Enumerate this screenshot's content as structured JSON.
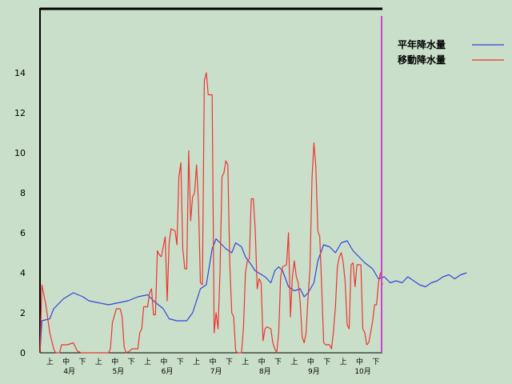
{
  "chart_data": {
    "type": "line",
    "title": "",
    "xlabel": "",
    "ylabel": "",
    "ylim": [
      0,
      16
    ],
    "y_ticks": [
      "0",
      "2",
      "4",
      "6",
      "8",
      "10",
      "12",
      "14"
    ],
    "grid": false,
    "legend_position": "right",
    "x_units": "day index from April 1 (0 = Apr 1)",
    "dekad_labels": [
      "上",
      "中",
      "下",
      "上",
      "中",
      "下",
      "上",
      "中",
      "下",
      "上",
      "中",
      "下",
      "上",
      "中",
      "下",
      "上",
      "中",
      "下",
      "上",
      "中",
      "下"
    ],
    "month_labels": [
      "4月",
      "5月",
      "6月",
      "7月",
      "8月",
      "9月",
      "10月"
    ],
    "colors": {
      "normal": "#3344dd",
      "moving": "#ee3333",
      "marker": "#cc44cc"
    },
    "series": [
      {
        "name": "平年降水量",
        "color": "#3344dd",
        "points": [
          [
            0,
            0
          ],
          [
            1,
            1.6
          ],
          [
            5,
            1.7
          ],
          [
            7,
            2.2
          ],
          [
            12,
            2.7
          ],
          [
            17,
            3.0
          ],
          [
            22,
            2.8
          ],
          [
            25,
            2.6
          ],
          [
            30,
            2.5
          ],
          [
            35,
            2.4
          ],
          [
            40,
            2.5
          ],
          [
            45,
            2.6
          ],
          [
            50,
            2.8
          ],
          [
            55,
            2.9
          ],
          [
            58,
            2.6
          ],
          [
            63,
            2.2
          ],
          [
            66,
            1.7
          ],
          [
            70,
            1.6
          ],
          [
            75,
            1.6
          ],
          [
            78,
            2.0
          ],
          [
            82,
            3.2
          ],
          [
            85,
            3.4
          ],
          [
            88,
            5.2
          ],
          [
            90,
            5.7
          ],
          [
            92,
            5.5
          ],
          [
            95,
            5.2
          ],
          [
            98,
            5.0
          ],
          [
            100,
            5.5
          ],
          [
            103,
            5.3
          ],
          [
            105,
            4.8
          ],
          [
            108,
            4.4
          ],
          [
            110,
            4.1
          ],
          [
            115,
            3.8
          ],
          [
            118,
            3.5
          ],
          [
            120,
            4.1
          ],
          [
            122,
            4.3
          ],
          [
            124,
            4.1
          ],
          [
            127,
            3.3
          ],
          [
            130,
            3.1
          ],
          [
            133,
            3.2
          ],
          [
            135,
            2.8
          ],
          [
            137,
            3.0
          ],
          [
            140,
            3.5
          ],
          [
            142,
            4.6
          ],
          [
            145,
            5.4
          ],
          [
            148,
            5.3
          ],
          [
            151,
            5.0
          ],
          [
            154,
            5.5
          ],
          [
            157,
            5.6
          ],
          [
            160,
            5.1
          ],
          [
            163,
            4.8
          ],
          [
            166,
            4.5
          ],
          [
            170,
            4.2
          ],
          [
            173,
            3.7
          ],
          [
            176,
            3.8
          ],
          [
            179,
            3.5
          ],
          [
            182,
            3.6
          ],
          [
            185,
            3.5
          ],
          [
            188,
            3.8
          ],
          [
            191,
            3.6
          ],
          [
            194,
            3.4
          ],
          [
            197,
            3.3
          ],
          [
            200,
            3.5
          ],
          [
            203,
            3.6
          ],
          [
            206,
            3.8
          ],
          [
            209,
            3.9
          ],
          [
            212,
            3.7
          ],
          [
            215,
            3.9
          ],
          [
            218,
            4.0
          ]
        ]
      },
      {
        "name": "移動降水量",
        "color": "#ee3333",
        "points": [
          [
            0,
            0
          ],
          [
            1,
            3.4
          ],
          [
            3,
            2.4
          ],
          [
            5,
            1.0
          ],
          [
            7,
            0.2
          ],
          [
            8,
            0
          ],
          [
            10,
            0
          ],
          [
            11,
            0.4
          ],
          [
            14,
            0.4
          ],
          [
            17,
            0.5
          ],
          [
            19,
            0.1
          ],
          [
            21,
            0
          ],
          [
            25,
            0
          ],
          [
            30,
            0
          ],
          [
            35,
            0
          ],
          [
            36,
            0.2
          ],
          [
            37,
            1.5
          ],
          [
            39,
            2.2
          ],
          [
            41,
            2.2
          ],
          [
            42,
            1.8
          ],
          [
            43,
            0.3
          ],
          [
            44,
            0
          ],
          [
            46,
            0.1
          ],
          [
            47,
            0.2
          ],
          [
            50,
            0.2
          ],
          [
            51,
            1.0
          ],
          [
            52,
            1.2
          ],
          [
            53,
            2.3
          ],
          [
            55,
            2.3
          ],
          [
            56,
            3.0
          ],
          [
            57,
            3.2
          ],
          [
            58,
            1.9
          ],
          [
            59,
            1.9
          ],
          [
            60,
            5.1
          ],
          [
            61,
            4.9
          ],
          [
            62,
            4.8
          ],
          [
            64,
            5.8
          ],
          [
            65,
            2.6
          ],
          [
            66,
            5.5
          ],
          [
            67,
            6.2
          ],
          [
            69,
            6.1
          ],
          [
            70,
            5.4
          ],
          [
            71,
            8.8
          ],
          [
            72,
            9.5
          ],
          [
            73,
            5.2
          ],
          [
            74,
            4.2
          ],
          [
            75,
            4.2
          ],
          [
            76,
            10.1
          ],
          [
            77,
            6.6
          ],
          [
            78,
            7.8
          ],
          [
            79,
            8.0
          ],
          [
            80,
            9.4
          ],
          [
            81,
            7.5
          ],
          [
            82,
            3.5
          ],
          [
            83,
            3.4
          ],
          [
            84,
            13.6
          ],
          [
            85,
            14.0
          ],
          [
            86,
            12.9
          ],
          [
            88,
            12.9
          ],
          [
            89,
            1.0
          ],
          [
            90,
            2.0
          ],
          [
            91,
            1.2
          ],
          [
            92,
            4.0
          ],
          [
            93,
            8.8
          ],
          [
            94,
            9.0
          ],
          [
            95,
            9.6
          ],
          [
            96,
            9.4
          ],
          [
            97,
            4.5
          ],
          [
            98,
            2.0
          ],
          [
            99,
            1.8
          ],
          [
            100,
            0.1
          ],
          [
            101,
            0
          ],
          [
            103,
            0
          ],
          [
            104,
            1.3
          ],
          [
            105,
            4.0
          ],
          [
            106,
            4.6
          ],
          [
            107,
            4.7
          ],
          [
            108,
            7.7
          ],
          [
            109,
            7.7
          ],
          [
            110,
            6.2
          ],
          [
            111,
            3.2
          ],
          [
            112,
            3.7
          ],
          [
            113,
            3.5
          ],
          [
            114,
            0.6
          ],
          [
            115,
            1.2
          ],
          [
            116,
            1.3
          ],
          [
            118,
            1.2
          ],
          [
            119,
            0.5
          ],
          [
            120,
            0.2
          ],
          [
            121,
            0
          ],
          [
            122,
            1.0
          ],
          [
            123,
            3.8
          ],
          [
            124,
            4.3
          ],
          [
            126,
            4.4
          ],
          [
            127,
            6.0
          ],
          [
            128,
            1.8
          ],
          [
            129,
            3.8
          ],
          [
            130,
            4.6
          ],
          [
            131,
            3.8
          ],
          [
            132,
            3.5
          ],
          [
            133,
            2.5
          ],
          [
            134,
            0.8
          ],
          [
            135,
            0.5
          ],
          [
            136,
            1.0
          ],
          [
            137,
            2.8
          ],
          [
            138,
            4.2
          ],
          [
            139,
            8.7
          ],
          [
            140,
            10.5
          ],
          [
            141,
            9.3
          ],
          [
            142,
            6.1
          ],
          [
            143,
            5.8
          ],
          [
            144,
            3.2
          ],
          [
            145,
            0.5
          ],
          [
            146,
            0.4
          ],
          [
            148,
            0.4
          ],
          [
            149,
            0.2
          ],
          [
            150,
            1.1
          ],
          [
            151,
            2.3
          ],
          [
            152,
            4.3
          ],
          [
            153,
            4.8
          ],
          [
            154,
            5.0
          ],
          [
            155,
            4.5
          ],
          [
            156,
            3.5
          ],
          [
            157,
            1.4
          ],
          [
            158,
            1.2
          ],
          [
            159,
            4.4
          ],
          [
            160,
            4.5
          ],
          [
            161,
            3.3
          ],
          [
            162,
            4.4
          ],
          [
            164,
            4.4
          ],
          [
            165,
            1.2
          ],
          [
            166,
            1.0
          ],
          [
            167,
            0.4
          ],
          [
            168,
            0.5
          ],
          [
            169,
            1.0
          ],
          [
            170,
            1.6
          ],
          [
            171,
            2.4
          ],
          [
            172,
            2.4
          ],
          [
            173,
            3.5
          ],
          [
            174,
            4.0
          ],
          [
            175,
            3.4
          ]
        ]
      }
    ]
  }
}
